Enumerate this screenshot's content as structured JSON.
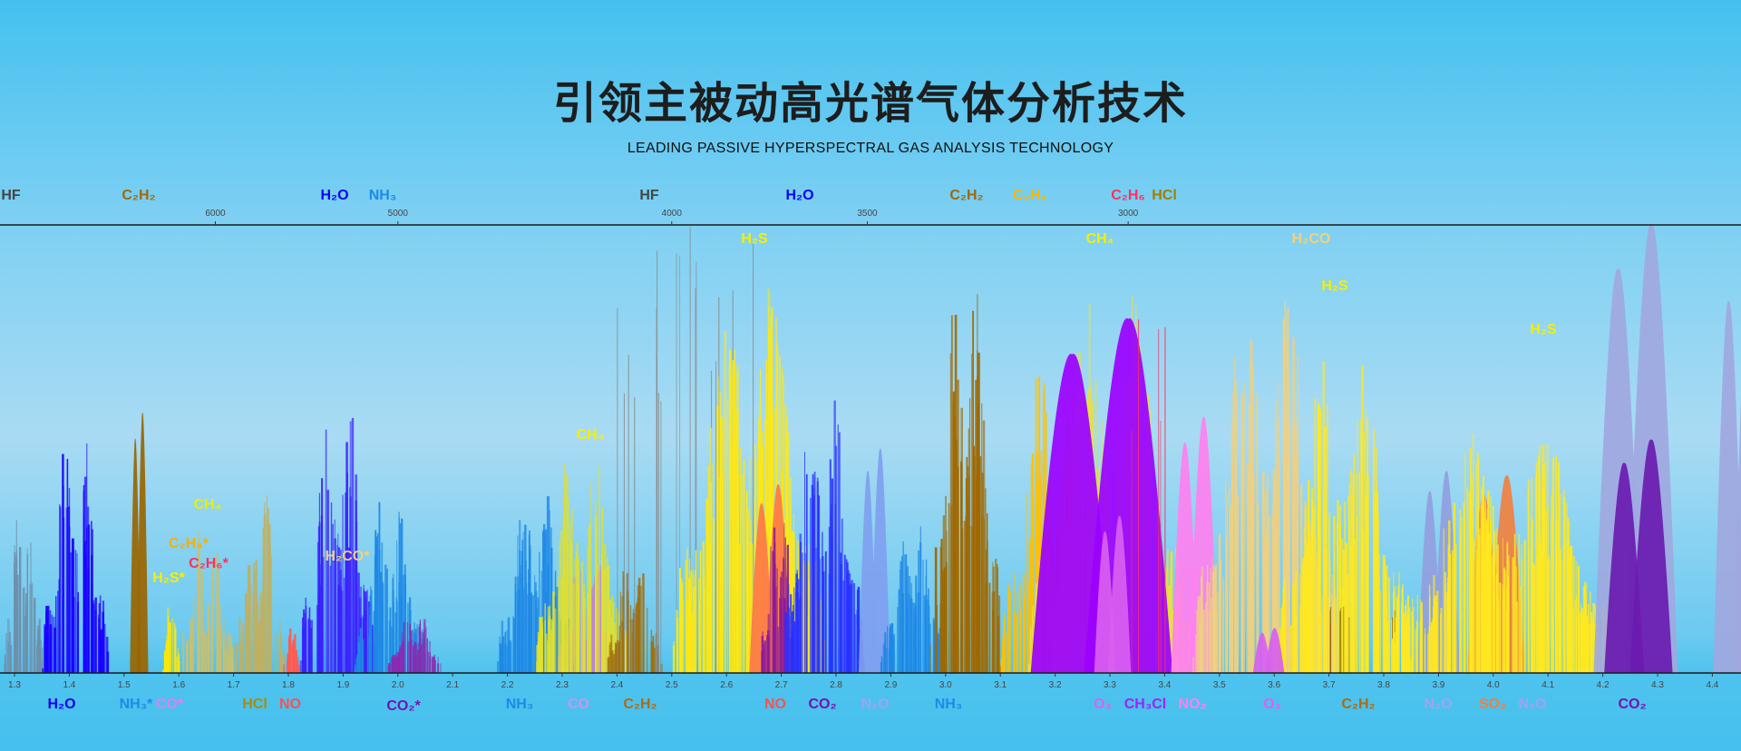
{
  "header": {
    "title": "引领主被动高光谱气体分析技术",
    "subtitle": "LEADING PASSIVE HYPERSPECTRAL GAS ANALYSIS TECHNOLOGY"
  },
  "chart_data": {
    "type": "area",
    "title": "",
    "xlabel": "",
    "ylabel": "",
    "x_unit_bottom": "µm",
    "x_unit_top": "cm⁻¹ (wavenumber)",
    "xlim": [
      1.28,
      4.47
    ],
    "ylim": [
      0,
      1
    ],
    "grid": false,
    "bottom_ticks": [
      "1.3",
      "1.4",
      "1.5",
      "1.6",
      "1.7",
      "1.8",
      "1.9",
      "2.0",
      "2.1",
      "2.2",
      "2.3",
      "2.4",
      "2.5",
      "2.6",
      "2.7",
      "2.8",
      "2.9",
      "3.0",
      "3.1",
      "3.2",
      "3.3",
      "3.4",
      "3.5",
      "3.6",
      "3.7",
      "3.8",
      "3.9",
      "4.0",
      "4.1",
      "4.2",
      "4.3",
      "4.4"
    ],
    "top_ticks": [
      "6000",
      "5000",
      "4000",
      "3500",
      "3000"
    ],
    "top_labels": [
      {
        "text": "HF",
        "color": "#454545"
      },
      {
        "text": "C₂H₂",
        "color": "#a0680f"
      },
      {
        "text": "H₂O",
        "color": "#0a00f0"
      },
      {
        "text": "NH₃",
        "color": "#1e8ae6"
      },
      {
        "text": "HF",
        "color": "#454545"
      },
      {
        "text": "H₂O",
        "color": "#0a00f0"
      },
      {
        "text": "C₂H₂",
        "color": "#a0680f"
      },
      {
        "text": "C₂H₄",
        "color": "#f5b800"
      },
      {
        "text": "C₂H₆",
        "color": "#ff3060"
      },
      {
        "text": "HCl",
        "color": "#a08000"
      }
    ],
    "plot_labels": [
      {
        "text": "H₂S",
        "color": "#f5f000"
      },
      {
        "text": "CH₄",
        "color": "#f5f000"
      },
      {
        "text": "H₂CO",
        "color": "#f0d27a"
      },
      {
        "text": "H₂S",
        "color": "#f5f000"
      },
      {
        "text": "H₂S",
        "color": "#f5f000"
      },
      {
        "text": "CH₄",
        "color": "#f5f000"
      },
      {
        "text": "CH₄",
        "color": "#e8f000"
      },
      {
        "text": "C₂H₄*",
        "color": "#f5b000"
      },
      {
        "text": "C₂H₆*",
        "color": "#ff3060"
      },
      {
        "text": "H₂S*",
        "color": "#f5f000"
      },
      {
        "text": "H₂CO*",
        "color": "#f0d27a"
      }
    ],
    "bottom_labels": [
      {
        "text": "H₂O",
        "color": "#0a00f0"
      },
      {
        "text": "NH₃*",
        "color": "#1e8ae6"
      },
      {
        "text": "CO*",
        "color": "#e080f0"
      },
      {
        "text": "HCl",
        "color": "#b08a00"
      },
      {
        "text": "NO",
        "color": "#ff5050"
      },
      {
        "text": "CO₂*",
        "color": "#7a10b0"
      },
      {
        "text": "NH₃",
        "color": "#1e8ae6"
      },
      {
        "text": "CO",
        "color": "#d090f0"
      },
      {
        "text": "C₂H₂",
        "color": "#b06a10"
      },
      {
        "text": "NO",
        "color": "#ff5050"
      },
      {
        "text": "CO₂",
        "color": "#7a10b0"
      },
      {
        "text": "N₂O",
        "color": "#a0a4f0"
      },
      {
        "text": "NH₃",
        "color": "#1e8ae6"
      },
      {
        "text": "O₃",
        "color": "#e060f0"
      },
      {
        "text": "CH₃Cl",
        "color": "#a020ff"
      },
      {
        "text": "NO₂",
        "color": "#ff80f0"
      },
      {
        "text": "O₃",
        "color": "#e060f0"
      },
      {
        "text": "C₂H₂",
        "color": "#b06a10"
      },
      {
        "text": "N₂O",
        "color": "#a0a4f0"
      },
      {
        "text": "SO₂",
        "color": "#f08040"
      },
      {
        "text": "N₂O",
        "color": "#a0a4f0"
      },
      {
        "text": "CO₂",
        "color": "#7a10b0"
      }
    ],
    "series": [
      {
        "gas": "misc",
        "lo": 1.28,
        "hi": 1.35,
        "peak": 0.45,
        "color": "#6f8faa",
        "style": "lines"
      },
      {
        "gas": "H2O",
        "lo": 1.35,
        "hi": 1.47,
        "peak": 0.6,
        "color": "#1a00ff",
        "style": "lines"
      },
      {
        "gas": "C2H2",
        "lo": 1.51,
        "hi": 1.545,
        "peak": 0.58,
        "color": "#9a6500",
        "style": "fill"
      },
      {
        "gas": "H2S",
        "lo": 1.57,
        "hi": 1.6,
        "peak": 0.2,
        "color": "#ffe800",
        "style": "lines"
      },
      {
        "gas": "CH4",
        "lo": 1.6,
        "hi": 1.7,
        "peak": 0.35,
        "color": "#c8c070",
        "style": "lines"
      },
      {
        "gas": "HCl",
        "lo": 1.7,
        "hi": 1.79,
        "peak": 0.45,
        "color": "#c0b060",
        "style": "lines"
      },
      {
        "gas": "NO",
        "lo": 1.79,
        "hi": 1.82,
        "peak": 0.13,
        "color": "#ff5a50",
        "style": "lines"
      },
      {
        "gas": "H2O",
        "lo": 1.82,
        "hi": 1.96,
        "peak": 0.65,
        "color": "#3a20ff",
        "style": "lines"
      },
      {
        "gas": "NH3",
        "lo": 1.92,
        "hi": 2.05,
        "peak": 0.42,
        "color": "#1e88e5",
        "style": "lines"
      },
      {
        "gas": "CO2",
        "lo": 1.98,
        "hi": 2.08,
        "peak": 0.15,
        "color": "#8a2ab0",
        "style": "lines"
      },
      {
        "gas": "NH3",
        "lo": 2.18,
        "hi": 2.32,
        "peak": 0.45,
        "color": "#1e88e5",
        "style": "lines"
      },
      {
        "gas": "CO",
        "lo": 2.29,
        "hi": 2.4,
        "peak": 0.3,
        "color": "#c080e0",
        "style": "lines"
      },
      {
        "gas": "CH4",
        "lo": 2.25,
        "hi": 2.42,
        "peak": 0.55,
        "color": "#e0e030",
        "style": "lines"
      },
      {
        "gas": "C2H2",
        "lo": 2.38,
        "hi": 2.48,
        "peak": 0.3,
        "color": "#a07010",
        "style": "lines"
      },
      {
        "gas": "HF",
        "lo": 2.4,
        "hi": 2.65,
        "peak": 1.0,
        "color": "#8a8a8a",
        "style": "sparse"
      },
      {
        "gas": "H2S",
        "lo": 2.5,
        "hi": 2.78,
        "peak": 0.98,
        "color": "#ffe810",
        "style": "lines"
      },
      {
        "gas": "NO",
        "lo": 2.64,
        "hi": 2.72,
        "peak": 0.42,
        "color": "#ff7848",
        "style": "fill"
      },
      {
        "gas": "CO2",
        "lo": 2.66,
        "hi": 2.73,
        "peak": 0.4,
        "color": "#8a1a9a",
        "style": "lines"
      },
      {
        "gas": "H2O",
        "lo": 2.7,
        "hi": 2.85,
        "peak": 0.7,
        "color": "#2a30ff",
        "style": "lines"
      },
      {
        "gas": "N2O",
        "lo": 2.84,
        "hi": 2.9,
        "peak": 0.5,
        "color": "#80a0f0",
        "style": "fill"
      },
      {
        "gas": "NH3",
        "lo": 2.88,
        "hi": 3.0,
        "peak": 0.4,
        "color": "#1e88e5",
        "style": "lines"
      },
      {
        "gas": "C2H2",
        "lo": 2.97,
        "hi": 3.1,
        "peak": 1.0,
        "color": "#a06800",
        "style": "lines"
      },
      {
        "gas": "C2H4",
        "lo": 3.1,
        "hi": 3.3,
        "peak": 0.8,
        "color": "#ffc000",
        "style": "lines"
      },
      {
        "gas": "CH4",
        "lo": 3.15,
        "hi": 3.45,
        "peak": 0.95,
        "color": "#e8e040",
        "style": "lines"
      },
      {
        "gas": "CH3Cl",
        "lo": 3.15,
        "hi": 3.42,
        "peak": 0.79,
        "color": "#9b00ff",
        "style": "fill"
      },
      {
        "gas": "O3",
        "lo": 3.27,
        "hi": 3.34,
        "peak": 0.35,
        "color": "#d860f0",
        "style": "fill"
      },
      {
        "gas": "C2H6",
        "lo": 3.33,
        "hi": 3.4,
        "peak": 0.9,
        "color": "#ff3060",
        "style": "sparse"
      },
      {
        "gas": "NO2",
        "lo": 3.41,
        "hi": 3.5,
        "peak": 0.57,
        "color": "#ff80f0",
        "style": "fill"
      },
      {
        "gas": "H2CO",
        "lo": 3.45,
        "hi": 3.72,
        "peak": 0.96,
        "color": "#f0d080",
        "style": "lines"
      },
      {
        "gas": "H2S",
        "lo": 3.6,
        "hi": 3.85,
        "peak": 0.78,
        "color": "#ffe820",
        "style": "lines"
      },
      {
        "gas": "O3",
        "lo": 3.56,
        "hi": 3.62,
        "peak": 0.1,
        "color": "#d860f0",
        "style": "fill"
      },
      {
        "gas": "C2H2",
        "lo": 3.7,
        "hi": 3.82,
        "peak": 0.15,
        "color": "#8a5a00",
        "style": "sparse"
      },
      {
        "gas": "N2O",
        "lo": 3.86,
        "hi": 3.94,
        "peak": 0.45,
        "color": "#90a0e0",
        "style": "fill"
      },
      {
        "gas": "SO2",
        "lo": 3.95,
        "hi": 4.06,
        "peak": 0.44,
        "color": "#f08040",
        "style": "fill"
      },
      {
        "gas": "H2S",
        "lo": 3.8,
        "hi": 4.25,
        "peak": 0.6,
        "color": "#ffe820",
        "style": "lines"
      },
      {
        "gas": "N2O",
        "lo": 4.18,
        "hi": 4.34,
        "peak": 1.0,
        "color": "#a0a8e0",
        "style": "fill"
      },
      {
        "gas": "CO2",
        "lo": 4.2,
        "hi": 4.33,
        "peak": 0.52,
        "color": "#6a1ab0",
        "style": "fill"
      },
      {
        "gas": "N2O",
        "lo": 4.4,
        "hi": 4.5,
        "peak": 0.92,
        "color": "#a0a8e0",
        "style": "fill"
      }
    ]
  }
}
